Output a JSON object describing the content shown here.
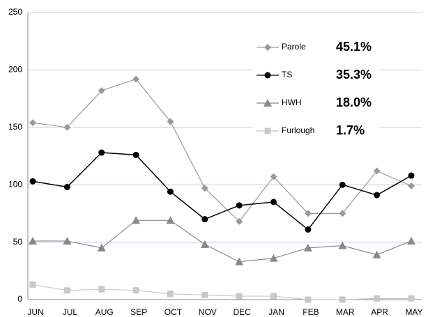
{
  "chart_data": {
    "type": "line",
    "categories": [
      "JUN",
      "JUL",
      "AUG",
      "SEP",
      "OCT",
      "NOV",
      "DEC",
      "JAN",
      "FEB",
      "MAR",
      "APR",
      "MAY"
    ],
    "series": [
      {
        "name": "Parole",
        "color": "#999999",
        "marker": "diamond",
        "values": [
          154,
          150,
          182,
          192,
          155,
          97,
          68,
          107,
          75,
          75,
          112,
          99
        ]
      },
      {
        "name": "TS",
        "color": "#000000",
        "marker": "circle",
        "values": [
          103,
          98,
          128,
          126,
          94,
          70,
          82,
          85,
          61,
          100,
          91,
          108
        ]
      },
      {
        "name": "HWH",
        "color": "#888888",
        "marker": "triangle",
        "values": [
          51,
          51,
          45,
          69,
          69,
          48,
          33,
          36,
          45,
          47,
          39,
          51
        ]
      },
      {
        "name": "Furlough",
        "color": "#c8c8c8",
        "marker": "square",
        "values": [
          13,
          8,
          9,
          8,
          5,
          4,
          3,
          3,
          0,
          0,
          1,
          1
        ]
      }
    ],
    "annotations": [
      "45.1%",
      "35.3%",
      "18.0%",
      "1.7%"
    ],
    "ylim": [
      0,
      250
    ],
    "yticks": [
      0,
      50,
      100,
      150,
      200,
      250
    ],
    "grid": true
  }
}
